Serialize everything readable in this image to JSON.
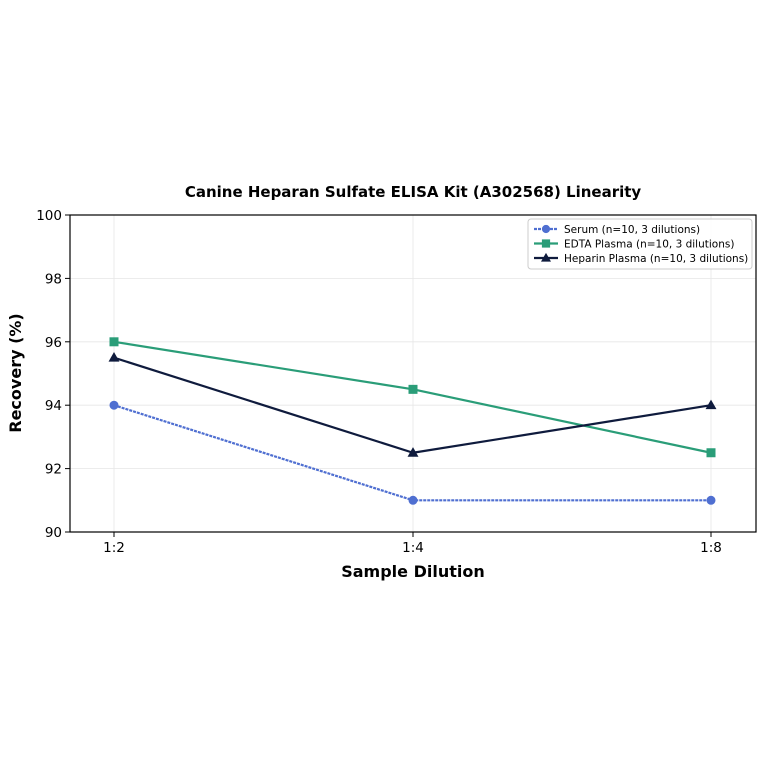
{
  "chart_data": {
    "type": "line",
    "title": "Canine Heparan Sulfate ELISA Kit (A302568) Linearity",
    "xlabel": "Sample Dilution",
    "ylabel": "Recovery (%)",
    "categories": [
      "1:2",
      "1:4",
      "1:8"
    ],
    "ylim": [
      90,
      100
    ],
    "yticks": [
      "90",
      "92",
      "94",
      "96",
      "98",
      "100"
    ],
    "grid": true,
    "legend_position": "top-right",
    "series": [
      {
        "name": "Serum (n=10, 3 dilutions)",
        "values": [
          94,
          91,
          91
        ],
        "color": "#4f6fd1",
        "marker": "circle",
        "linestyle": "dashed"
      },
      {
        "name": "EDTA Plasma (n=10, 3 dilutions)",
        "values": [
          96,
          94.5,
          92.5
        ],
        "color": "#2a9d78",
        "marker": "square",
        "linestyle": "solid"
      },
      {
        "name": "Heparin Plasma (n=10, 3 dilutions)",
        "values": [
          95.5,
          92.5,
          94
        ],
        "color": "#0f1b3d",
        "marker": "triangle",
        "linestyle": "solid"
      }
    ]
  }
}
